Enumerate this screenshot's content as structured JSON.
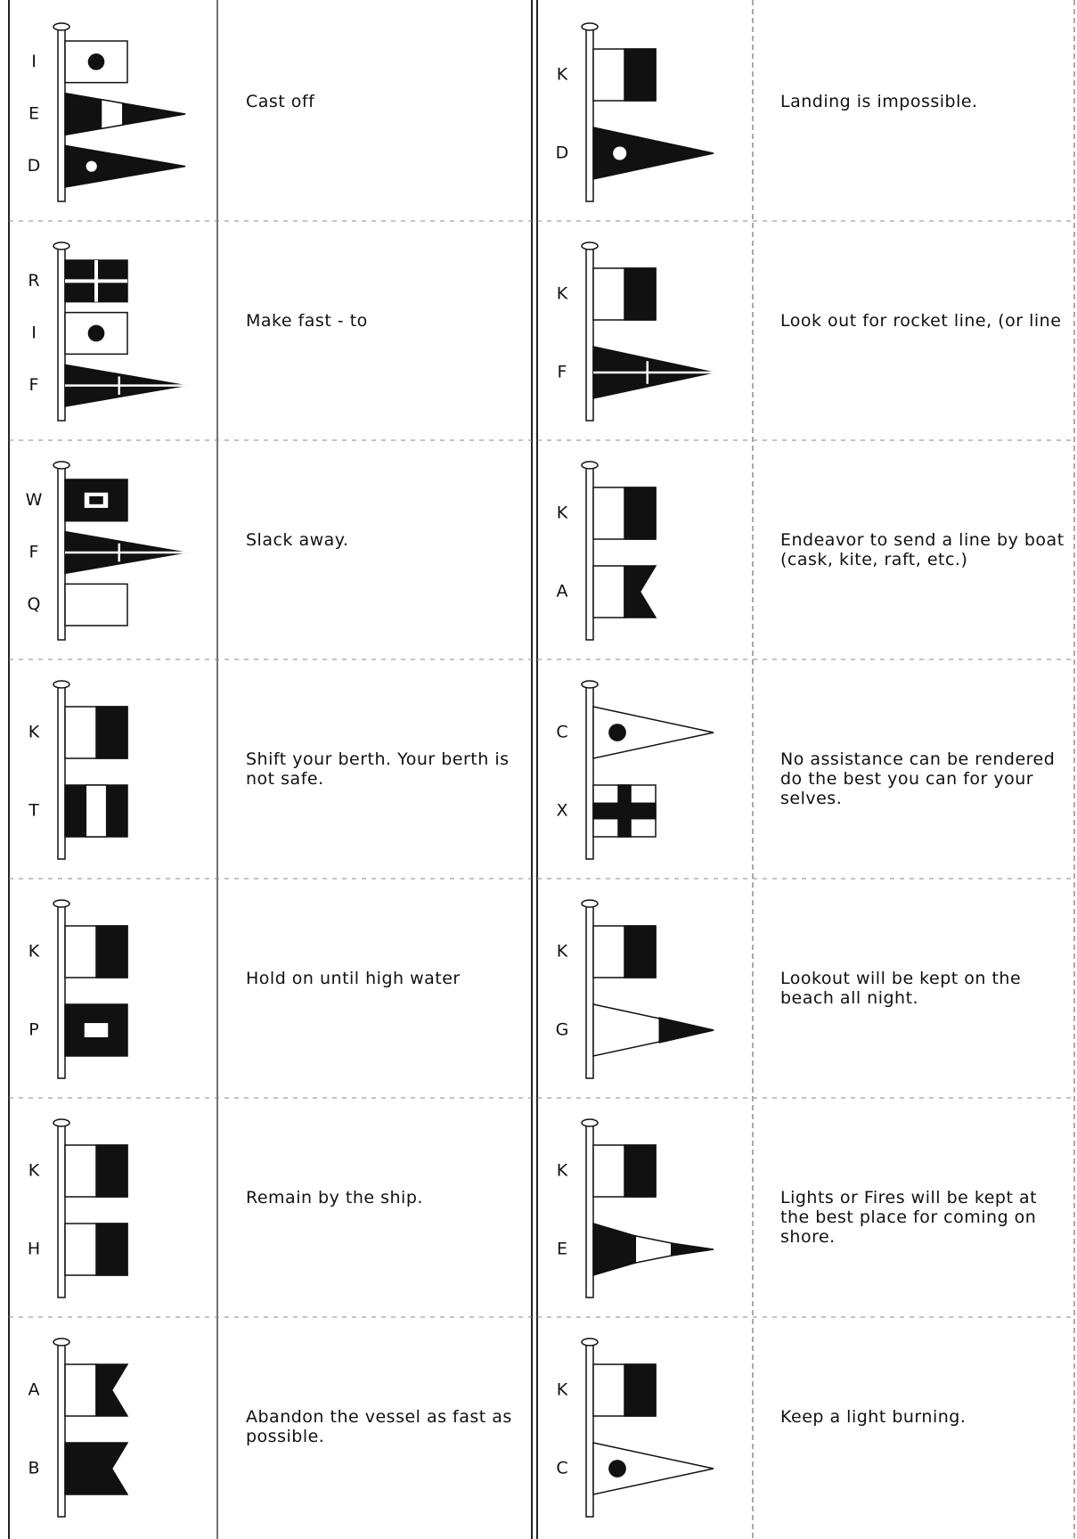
{
  "columns": [
    {
      "rows": [
        {
          "flags": [
            "I",
            "E",
            "D"
          ],
          "text": "Cast off"
        },
        {
          "flags": [
            "R",
            "I",
            "F"
          ],
          "text": "Make fast - to"
        },
        {
          "flags": [
            "W",
            "F",
            "Q"
          ],
          "text": "Slack away."
        },
        {
          "flags": [
            "K",
            "T"
          ],
          "text": "Shift your berth. Your berth is not safe."
        },
        {
          "flags": [
            "K",
            "P"
          ],
          "text": "Hold on until high water"
        },
        {
          "flags": [
            "K",
            "H"
          ],
          "text": "Remain by the ship."
        },
        {
          "flags": [
            "A",
            "B"
          ],
          "text": "Abandon the vessel as fast as possible."
        }
      ]
    },
    {
      "rows": [
        {
          "flags": [
            "K",
            "D"
          ],
          "text": "Landing is impossible."
        },
        {
          "flags": [
            "K",
            "F"
          ],
          "text": "Look out for rocket line, (or line"
        },
        {
          "flags": [
            "K",
            "A"
          ],
          "text": "Endeavor to send a line by boat (cask, kite, raft, etc.)"
        },
        {
          "flags": [
            "C",
            "X"
          ],
          "text": "No assistance can be rendered do the best you can for your selves."
        },
        {
          "flags": [
            "K",
            "G"
          ],
          "text": "Lookout will be kept on the beach all night."
        },
        {
          "flags": [
            "K",
            "E"
          ],
          "text": "Lights or Fires will be kept at the best place for coming on shore."
        },
        {
          "flags": [
            "K",
            "C"
          ],
          "text": "Keep a light burning."
        }
      ]
    }
  ]
}
